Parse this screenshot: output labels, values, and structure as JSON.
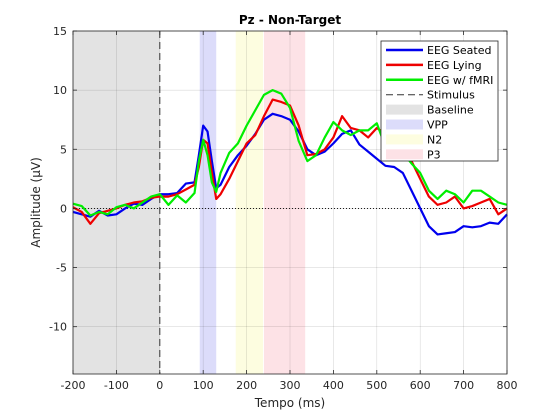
{
  "chart_data": {
    "type": "line",
    "title": "Pz - Non-Target",
    "xlabel": "Tempo (ms)",
    "ylabel": "Amplitude (μV)",
    "xlim": [
      -200,
      800
    ],
    "ylim": [
      -14,
      15
    ],
    "xticks": [
      -200,
      -100,
      0,
      100,
      200,
      300,
      400,
      500,
      600,
      700,
      800
    ],
    "yticks": [
      -10,
      -5,
      0,
      5,
      10,
      15
    ],
    "grid": true,
    "legend_position": "top-right",
    "shaded_regions": [
      {
        "name": "Baseline",
        "x": [
          -200,
          0
        ],
        "color": "#e3e3e3"
      },
      {
        "name": "VPP",
        "x": [
          92,
          130
        ],
        "color": "#dcdcfa"
      },
      {
        "name": "N2",
        "x": [
          175,
          238
        ],
        "color": "#fdfde0"
      },
      {
        "name": "P3",
        "x": [
          240,
          335
        ],
        "color": "#fde2e6"
      }
    ],
    "stimulus_line": {
      "name": "Stimulus",
      "x": 0
    },
    "zero_line": 0,
    "series": [
      {
        "name": "EEG Seated",
        "color": "#0000ee",
        "x": [
          -200,
          -180,
          -160,
          -140,
          -120,
          -100,
          -80,
          -60,
          -40,
          -20,
          0,
          20,
          40,
          60,
          80,
          90,
          100,
          110,
          120,
          130,
          140,
          160,
          180,
          200,
          220,
          240,
          260,
          280,
          300,
          320,
          340,
          360,
          380,
          400,
          420,
          440,
          460,
          480,
          500,
          520,
          540,
          560,
          580,
          600,
          620,
          640,
          660,
          680,
          700,
          720,
          740,
          760,
          780,
          800
        ],
        "values": [
          -0.3,
          -0.5,
          -0.7,
          -0.2,
          -0.6,
          -0.5,
          0.0,
          0.4,
          0.3,
          0.8,
          1.2,
          1.2,
          1.3,
          2.1,
          2.2,
          4.5,
          7.0,
          6.5,
          4.0,
          1.7,
          2.0,
          3.5,
          4.5,
          5.3,
          6.3,
          7.5,
          8.0,
          7.8,
          7.5,
          6.5,
          5.0,
          4.5,
          4.8,
          5.5,
          6.3,
          6.6,
          5.4,
          4.8,
          4.2,
          3.6,
          3.5,
          3.0,
          1.5,
          0.0,
          -1.5,
          -2.2,
          -2.1,
          -2.0,
          -1.5,
          -1.6,
          -1.5,
          -1.2,
          -1.3,
          -0.5
        ]
      },
      {
        "name": "EEG Lying",
        "color": "#ee0000",
        "x": [
          -200,
          -180,
          -160,
          -140,
          -120,
          -100,
          -80,
          -60,
          -40,
          -20,
          0,
          20,
          40,
          60,
          80,
          90,
          100,
          110,
          120,
          130,
          140,
          160,
          180,
          200,
          220,
          240,
          260,
          280,
          300,
          320,
          340,
          360,
          380,
          400,
          420,
          440,
          460,
          480,
          500,
          520,
          540,
          560,
          580,
          600,
          620,
          640,
          660,
          680,
          700,
          720,
          740,
          760,
          780,
          800
        ],
        "values": [
          0.1,
          -0.3,
          -1.3,
          -0.4,
          -0.2,
          0.0,
          0.3,
          0.5,
          0.6,
          0.9,
          1.0,
          1.0,
          1.2,
          1.6,
          2.0,
          3.5,
          5.8,
          5.5,
          3.0,
          0.8,
          1.2,
          2.5,
          4.0,
          5.5,
          6.2,
          7.8,
          9.2,
          9.0,
          8.7,
          7.0,
          4.5,
          4.6,
          5.0,
          6.0,
          7.8,
          6.8,
          6.6,
          6.0,
          6.8,
          6.3,
          6.0,
          5.3,
          4.0,
          2.5,
          1.0,
          0.3,
          0.5,
          1.0,
          0.0,
          0.2,
          0.5,
          0.8,
          -0.5,
          0.0
        ]
      },
      {
        "name": "EEG w/ fMRI",
        "color": "#00ee00",
        "x": [
          -200,
          -180,
          -160,
          -140,
          -120,
          -100,
          -80,
          -60,
          -40,
          -20,
          0,
          20,
          40,
          60,
          80,
          90,
          100,
          110,
          120,
          130,
          140,
          160,
          180,
          200,
          220,
          240,
          260,
          280,
          300,
          320,
          340,
          360,
          380,
          400,
          420,
          440,
          460,
          480,
          500,
          520,
          540,
          560,
          580,
          600,
          620,
          640,
          660,
          680,
          700,
          720,
          740,
          760,
          780,
          800
        ],
        "values": [
          0.4,
          0.2,
          -0.6,
          -0.3,
          -0.5,
          0.1,
          0.3,
          0.0,
          0.5,
          1.0,
          1.2,
          0.3,
          1.1,
          0.5,
          1.3,
          4.0,
          5.8,
          4.5,
          2.2,
          1.4,
          3.0,
          4.7,
          5.5,
          7.0,
          8.3,
          9.6,
          10.0,
          9.7,
          8.5,
          5.7,
          4.0,
          4.5,
          6.0,
          7.3,
          6.6,
          6.2,
          6.6,
          6.6,
          7.2,
          5.2,
          5.8,
          4.7,
          3.8,
          3.0,
          1.5,
          0.8,
          1.5,
          1.2,
          0.5,
          1.5,
          1.5,
          1.0,
          0.5,
          0.3
        ]
      }
    ]
  }
}
